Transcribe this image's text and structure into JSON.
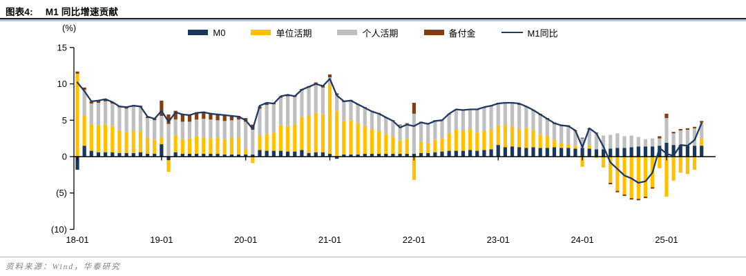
{
  "header": {
    "figure_label": "图表4:",
    "title": "M1 同比增速贡献"
  },
  "footer": {
    "source": "资料来源：Wind，华泰研究"
  },
  "colors": {
    "m0": "#17375e",
    "unit_demand": "#ffc000",
    "personal_demand": "#bfbfbf",
    "reserves": "#843c0c",
    "m1_line": "#1f3864",
    "axis": "#000000",
    "title_rule_light": "#b4c3da",
    "footer_rule": "#a9b9ce",
    "source_text": "#808080"
  },
  "chart_data": {
    "type": "bar",
    "subtype": "stacked-bars-with-line-overlay",
    "title": "M1 同比增速贡献",
    "unit_label": "(%)",
    "xlabel": "",
    "ylabel": "(%)",
    "ylim": [
      -10,
      15
    ],
    "grid": false,
    "legend_position": "top-center",
    "y_ticks": [
      "15",
      "10",
      "5",
      "0",
      "(5)",
      "(10)"
    ],
    "y_tick_values": [
      15,
      10,
      5,
      0,
      -5,
      -10
    ],
    "x_tick_labels": [
      "18-01",
      "19-01",
      "20-01",
      "21-01",
      "22-01",
      "23-01",
      "24-01",
      "25-01"
    ],
    "x_tick_month_indices": [
      0,
      12,
      24,
      36,
      48,
      60,
      72,
      84
    ],
    "months": [
      "2018-01",
      "2018-02",
      "2018-03",
      "2018-04",
      "2018-05",
      "2018-06",
      "2018-07",
      "2018-08",
      "2018-09",
      "2018-10",
      "2018-11",
      "2018-12",
      "2019-01",
      "2019-02",
      "2019-03",
      "2019-04",
      "2019-05",
      "2019-06",
      "2019-07",
      "2019-08",
      "2019-09",
      "2019-10",
      "2019-11",
      "2019-12",
      "2020-01",
      "2020-02",
      "2020-03",
      "2020-04",
      "2020-05",
      "2020-06",
      "2020-07",
      "2020-08",
      "2020-09",
      "2020-10",
      "2020-11",
      "2020-12",
      "2021-01",
      "2021-02",
      "2021-03",
      "2021-04",
      "2021-05",
      "2021-06",
      "2021-07",
      "2021-08",
      "2021-09",
      "2021-10",
      "2021-11",
      "2021-12",
      "2022-01",
      "2022-02",
      "2022-03",
      "2022-04",
      "2022-05",
      "2022-06",
      "2022-07",
      "2022-08",
      "2022-09",
      "2022-10",
      "2022-11",
      "2022-12",
      "2023-01",
      "2023-02",
      "2023-03",
      "2023-04",
      "2023-05",
      "2023-06",
      "2023-07",
      "2023-08",
      "2023-09",
      "2023-10",
      "2023-11",
      "2023-12",
      "2024-01",
      "2024-02",
      "2024-03",
      "2024-04",
      "2024-05",
      "2024-06",
      "2024-07",
      "2024-08",
      "2024-09",
      "2024-10",
      "2024-11",
      "2024-12",
      "2025-01",
      "2025-02",
      "2025-03",
      "2025-04",
      "2025-05",
      "2025-06"
    ],
    "series": [
      {
        "name": "M0",
        "key": "m0",
        "type": "bar",
        "color": "#17375e",
        "values": [
          -1.8,
          1.5,
          0.8,
          0.6,
          0.6,
          0.6,
          0.5,
          0.5,
          0.5,
          0.6,
          0.4,
          0.4,
          1.7,
          -0.5,
          0.6,
          0.4,
          0.4,
          0.4,
          0.4,
          0.4,
          0.4,
          0.3,
          0.3,
          0.3,
          0.3,
          0.3,
          0.9,
          0.8,
          0.8,
          0.8,
          0.7,
          0.7,
          0.9,
          0.5,
          0.6,
          0.6,
          0.4,
          -0.3,
          0.3,
          0.3,
          0.3,
          0.4,
          0.4,
          0.4,
          0.4,
          0.4,
          0.4,
          0.4,
          0.4,
          0.5,
          0.5,
          0.6,
          0.7,
          0.8,
          0.8,
          0.8,
          0.9,
          0.8,
          0.9,
          1.0,
          1.6,
          1.3,
          1.4,
          1.3,
          1.2,
          1.3,
          1.2,
          1.2,
          1.3,
          1.2,
          1.2,
          1.1,
          1.2,
          1.1,
          1.0,
          1.0,
          1.1,
          1.2,
          1.2,
          1.3,
          1.4,
          1.4,
          1.4,
          1.5,
          1.9,
          1.6,
          1.6,
          1.5,
          1.5,
          1.5
        ]
      },
      {
        "name": "单位活期",
        "key": "unit-demand",
        "type": "bar",
        "color": "#ffc000",
        "values": [
          11.4,
          4.1,
          3.6,
          3.7,
          3.8,
          3.6,
          3.1,
          2.9,
          3.1,
          2.9,
          2.2,
          1.9,
          0.9,
          -1.6,
          2.3,
          2.0,
          2.1,
          2.4,
          2.2,
          2.1,
          2.2,
          2.1,
          2.3,
          2.4,
          0.7,
          -0.9,
          2.0,
          2.3,
          2.5,
          3.5,
          3.5,
          3.7,
          4.5,
          5.1,
          5.4,
          5.2,
          9.5,
          6.3,
          4.6,
          4.7,
          4.3,
          3.8,
          3.4,
          3.1,
          2.7,
          2.3,
          1.8,
          2.0,
          -3.2,
          1.5,
          1.4,
          1.7,
          1.8,
          2.4,
          2.9,
          2.8,
          2.8,
          2.5,
          2.6,
          2.8,
          2.7,
          3.1,
          2.8,
          2.5,
          2.7,
          2.3,
          1.8,
          1.6,
          1.0,
          0.6,
          0.5,
          0.4,
          -1.4,
          0.5,
          -0.2,
          -1.5,
          -3.6,
          -4.7,
          -5.2,
          -5.7,
          -5.8,
          -5.5,
          -4.2,
          -1.6,
          -5.5,
          -3.3,
          -2.2,
          -2.4,
          -1.8,
          1.0
        ]
      },
      {
        "name": "个人活期",
        "key": "personal-demand",
        "type": "bar",
        "color": "#bfbfbf",
        "values": [
          0.0,
          3.6,
          2.9,
          3.1,
          3.2,
          3.1,
          3.2,
          3.2,
          3.3,
          3.3,
          2.7,
          2.7,
          3.0,
          4.5,
          2.2,
          2.4,
          2.3,
          2.3,
          2.6,
          2.6,
          2.4,
          2.5,
          2.4,
          2.4,
          3.8,
          3.4,
          3.7,
          4.0,
          3.9,
          3.8,
          4.1,
          3.8,
          3.7,
          3.9,
          3.9,
          3.7,
          1.0,
          2.2,
          2.6,
          2.6,
          2.5,
          2.5,
          2.4,
          2.4,
          2.2,
          2.2,
          2.1,
          2.1,
          5.5,
          2.6,
          2.6,
          2.6,
          2.5,
          2.6,
          2.7,
          2.7,
          2.7,
          3.1,
          3.2,
          3.1,
          2.9,
          2.9,
          3.1,
          3.3,
          2.9,
          2.7,
          2.7,
          2.3,
          2.2,
          2.4,
          2.4,
          2.0,
          1.3,
          2.1,
          2.2,
          1.9,
          1.9,
          2.0,
          1.6,
          1.6,
          1.3,
          1.0,
          1.1,
          1.0,
          3.4,
          1.6,
          2.0,
          2.2,
          2.4,
          2.2
        ]
      },
      {
        "name": "备付金",
        "key": "reserves",
        "type": "bar",
        "color": "#843c0c",
        "values": [
          0.3,
          0.3,
          0.3,
          0.3,
          0.3,
          0.2,
          0.2,
          0.2,
          0.2,
          0.2,
          0.2,
          0.3,
          2.1,
          1.3,
          1.2,
          1.1,
          1.0,
          1.0,
          1.0,
          0.9,
          0.9,
          0.9,
          0.7,
          0.5,
          0.5,
          0.7,
          0.3,
          0.2,
          0.2,
          0.2,
          0.2,
          0.2,
          0.2,
          0.2,
          0.3,
          0.3,
          0.4,
          0.2,
          0.2,
          0.2,
          0.1,
          0.1,
          0.1,
          0.1,
          0.1,
          0.1,
          0.1,
          0.1,
          1.5,
          0.2,
          0.1,
          0.1,
          0.1,
          0.1,
          0.1,
          0.1,
          0.1,
          0.1,
          0.1,
          0.1,
          0.2,
          0.1,
          0.2,
          0.2,
          0.1,
          0.1,
          0.2,
          0.2,
          0.2,
          0.2,
          0.2,
          0.1,
          0.1,
          0.2,
          0.1,
          0.0,
          -0.2,
          -0.2,
          -0.2,
          -0.2,
          -0.2,
          -0.2,
          -0.2,
          0.3,
          0.6,
          0.2,
          0.2,
          0.2,
          0.2,
          0.2
        ]
      },
      {
        "name": "M1同比",
        "key": "m1-yoy",
        "type": "line",
        "color": "#1f3864",
        "values": [
          10.2,
          9.0,
          7.6,
          7.7,
          7.9,
          7.5,
          6.9,
          6.8,
          7.0,
          6.9,
          5.5,
          5.2,
          6.3,
          4.8,
          6.1,
          5.8,
          5.7,
          6.0,
          6.1,
          5.9,
          5.8,
          5.7,
          5.6,
          5.5,
          5.0,
          3.8,
          7.0,
          7.4,
          7.3,
          8.3,
          8.5,
          8.3,
          9.2,
          9.6,
          10.0,
          9.7,
          10.7,
          8.4,
          7.6,
          7.7,
          7.2,
          6.7,
          6.2,
          5.9,
          5.4,
          4.9,
          4.0,
          4.4,
          4.2,
          4.7,
          4.5,
          4.9,
          5.0,
          5.9,
          6.5,
          6.4,
          6.5,
          6.5,
          6.8,
          7.0,
          7.3,
          7.4,
          7.4,
          7.3,
          6.9,
          6.4,
          5.8,
          5.2,
          4.6,
          4.3,
          4.2,
          3.6,
          1.3,
          3.9,
          3.2,
          1.4,
          -0.8,
          -1.7,
          -2.6,
          -3.0,
          -3.6,
          -3.4,
          -2.2,
          1.2,
          0.4,
          0.1,
          1.6,
          1.5,
          2.3,
          4.6
        ]
      }
    ]
  }
}
